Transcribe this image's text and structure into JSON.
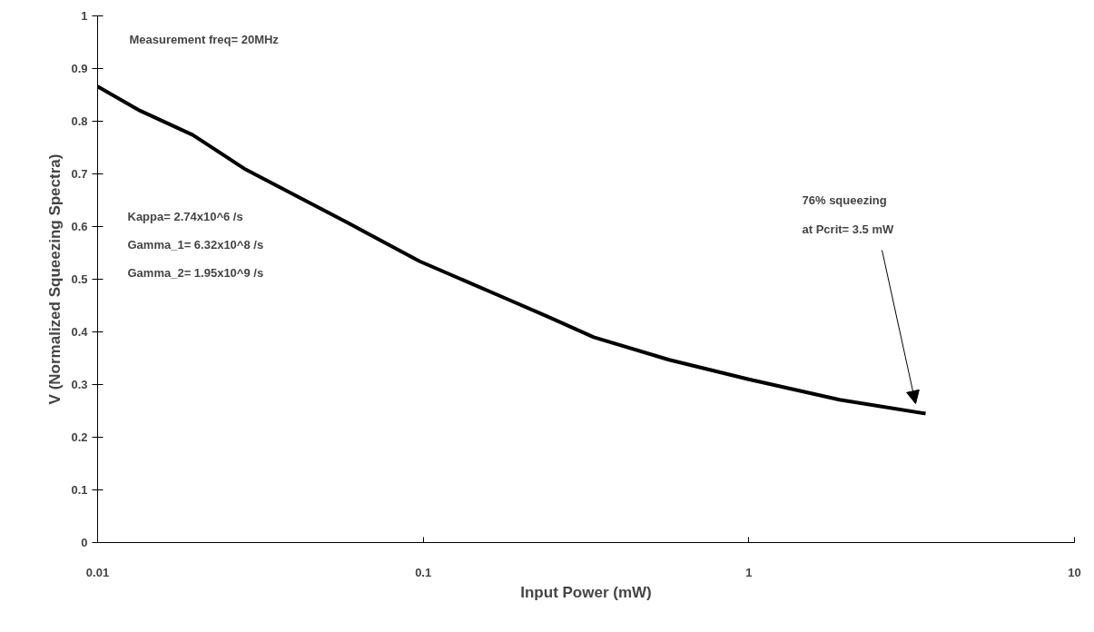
{
  "chart_data": {
    "type": "line",
    "xlabel": "Input Power (mW)",
    "ylabel": "V (Normalized Squeezing Spectra)",
    "log": "x",
    "xlim": [
      0.01,
      10
    ],
    "ylim": [
      0,
      1
    ],
    "xticks": [
      0.01,
      0.1,
      1,
      10
    ],
    "yticks": [
      0,
      0.1,
      0.2,
      0.3,
      0.4,
      0.5,
      0.6,
      0.7,
      0.8,
      0.9,
      1
    ],
    "grid": false,
    "marker": "none",
    "line_style": "solid",
    "series": [
      {
        "color": "#000000",
        "x": [
          0.01,
          0.0135,
          0.0196,
          0.0282,
          0.0595,
          0.0975,
          0.171,
          0.241,
          0.334,
          0.569,
          1,
          1.9,
          3.49
        ],
        "values": [
          0.866,
          0.82,
          0.774,
          0.71,
          0.605,
          0.534,
          0.469,
          0.429,
          0.39,
          0.347,
          0.31,
          0.271,
          0.245
        ]
      }
    ],
    "annotations": [
      "Measurement freq= 20MHz",
      "Kappa= 2.74x10^6 /s",
      "Gamma_1= 6.32x10^8 /s",
      "Gamma_2= 1.95x10^9 /s",
      "76% squeezing",
      "at Pcrit= 3.5 mW"
    ]
  }
}
